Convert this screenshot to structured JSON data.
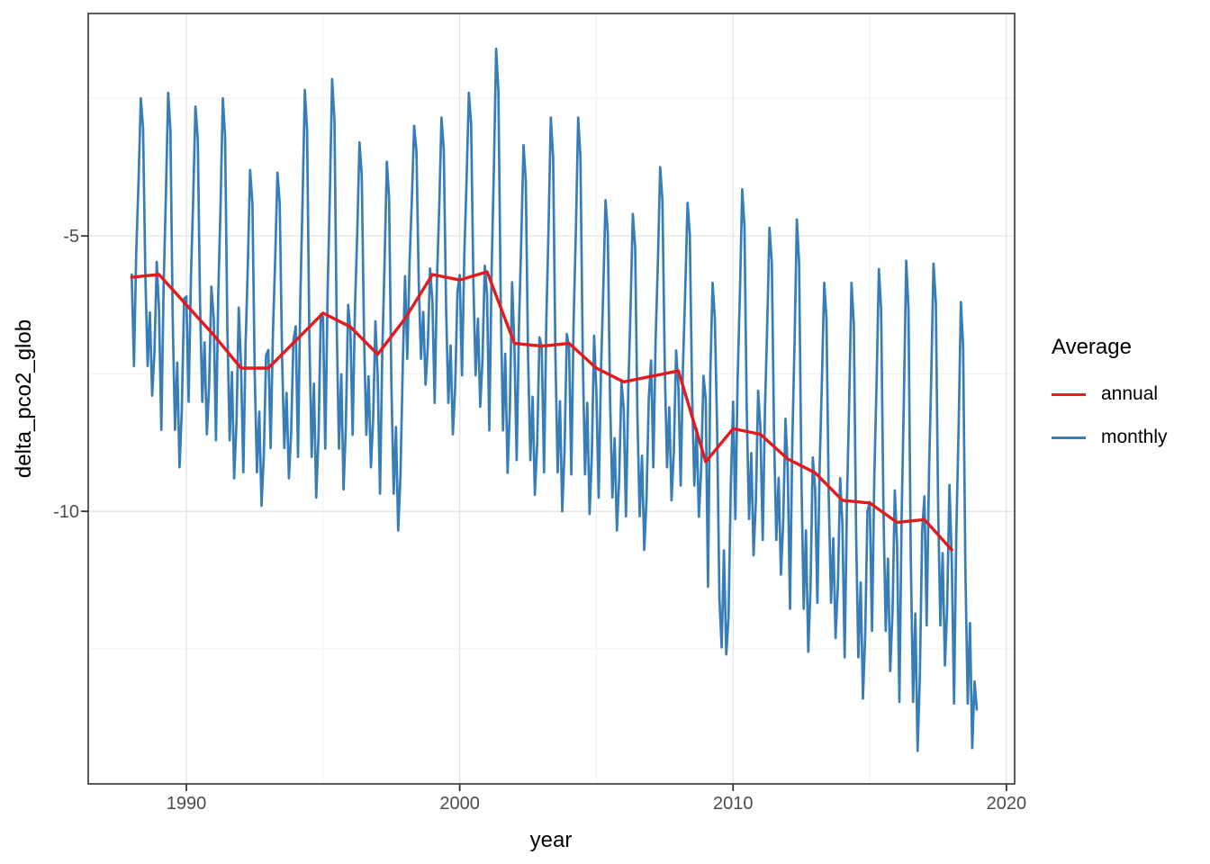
{
  "chart_data": {
    "type": "line",
    "title": "",
    "xlabel": "year",
    "ylabel": "delta_pco2_glob",
    "xlim": [
      1986.41,
      2020.3
    ],
    "ylim": [
      -14.95,
      -0.96
    ],
    "x_ticks_major": [
      1990,
      2000,
      2010,
      2020
    ],
    "x_ticks_minor": [
      1995,
      2005,
      2015
    ],
    "y_ticks_major": [
      -5,
      -10
    ],
    "y_ticks_minor": [
      -2.5,
      -7.5,
      -12.5
    ],
    "grid": true,
    "colors": {
      "annual": "#E41A1C",
      "monthly": "#377EB8",
      "grid_major": "#e5e5e5",
      "grid_minor": "#f2f2f2",
      "panel_border": "#333333",
      "tick": "#333333",
      "tick_label": "#4d4d4d"
    },
    "legend": {
      "title": "Average",
      "position": "right",
      "entries": [
        {
          "label": "annual",
          "color": "#E41A1C"
        },
        {
          "label": "monthly",
          "color": "#377EB8"
        }
      ]
    },
    "series": [
      {
        "name": "annual",
        "color": "#E41A1C",
        "x": [
          1988,
          1989,
          1990,
          1991,
          1992,
          1993,
          1994,
          1995,
          1996,
          1997,
          1998,
          1999,
          2000,
          2001,
          2002,
          2003,
          2004,
          2005,
          2006,
          2007,
          2008,
          2009,
          2010,
          2011,
          2012,
          2013,
          2014,
          2015,
          2016,
          2017,
          2018
        ],
        "values": [
          -5.75,
          -5.7,
          -6.25,
          -6.8,
          -7.4,
          -7.4,
          -6.9,
          -6.4,
          -6.65,
          -7.15,
          -6.5,
          -5.7,
          -5.8,
          -5.65,
          -6.95,
          -7.0,
          -6.95,
          -7.4,
          -7.65,
          -7.55,
          -7.45,
          -9.1,
          -8.5,
          -8.6,
          -9.05,
          -9.3,
          -9.8,
          -9.85,
          -10.2,
          -10.15,
          -10.7
        ]
      },
      {
        "name": "monthly",
        "color": "#377EB8",
        "start_year": 1988,
        "values_by_year": [
          [
            -5.7,
            -7.36,
            -5.31,
            -4.01,
            -2.5,
            -3.04,
            -5.74,
            -7.36,
            -6.39,
            -7.9,
            -7.09,
            -5.47
          ],
          [
            -6.34,
            -8.52,
            -5.94,
            -4.3,
            -2.4,
            -3.08,
            -6.48,
            -8.52,
            -7.3,
            -9.2,
            -8.18,
            -6.14
          ],
          [
            -6.1,
            -8.01,
            -5.74,
            -4.32,
            -2.65,
            -3.25,
            -6.22,
            -8.01,
            -6.93,
            -8.6,
            -7.71,
            -5.92
          ],
          [
            -6.5,
            -8.71,
            -6.09,
            -4.43,
            -2.5,
            -3.19,
            -6.64,
            -8.71,
            -7.47,
            -9.4,
            -8.37,
            -6.3
          ],
          [
            -7.34,
            -9.29,
            -6.97,
            -5.51,
            -3.8,
            -4.41,
            -7.46,
            -9.29,
            -8.19,
            -9.9,
            -8.99,
            -7.16
          ],
          [
            -7.07,
            -8.85,
            -6.74,
            -5.4,
            -3.85,
            -4.41,
            -7.18,
            -8.85,
            -7.85,
            -9.4,
            -8.57,
            -6.9
          ],
          [
            -6.64,
            -9.01,
            -6.2,
            -4.42,
            -2.35,
            -3.09,
            -6.79,
            -9.01,
            -7.68,
            -9.75,
            -8.64,
            -6.42
          ],
          [
            -6.47,
            -8.86,
            -6.02,
            -4.24,
            -2.15,
            -2.9,
            -6.62,
            -8.86,
            -7.51,
            -9.6,
            -8.48,
            -6.25
          ],
          [
            -6.72,
            -8.61,
            -6.37,
            -4.95,
            -3.3,
            -3.89,
            -6.84,
            -8.61,
            -7.55,
            -9.2,
            -8.32,
            -6.55
          ],
          [
            -7.54,
            -9.68,
            -7.13,
            -5.53,
            -3.65,
            -4.32,
            -7.67,
            -9.68,
            -8.47,
            -10.35,
            -9.35,
            -7.34
          ],
          [
            -5.73,
            -7.23,
            -5.44,
            -4.32,
            -3.0,
            -3.47,
            -5.82,
            -7.23,
            -6.38,
            -7.7,
            -7.0,
            -5.59
          ],
          [
            -6.19,
            -8.03,
            -5.84,
            -4.46,
            -2.85,
            -3.43,
            -6.3,
            -8.03,
            -6.99,
            -8.6,
            -7.74,
            -6.01
          ],
          [
            -5.71,
            -7.53,
            -5.36,
            -4.0,
            -2.4,
            -2.97,
            -5.82,
            -7.53,
            -6.5,
            -8.1,
            -7.25,
            -5.54
          ],
          [
            -6.07,
            -8.53,
            -5.6,
            -3.76,
            -1.6,
            -2.37,
            -6.22,
            -8.53,
            -7.14,
            -9.3,
            -8.15,
            -5.84
          ],
          [
            -7.03,
            -9.07,
            -6.65,
            -5.13,
            -3.35,
            -3.99,
            -7.16,
            -9.07,
            -7.92,
            -9.7,
            -8.75,
            -6.84
          ],
          [
            -7.0,
            -9.29,
            -6.57,
            -4.85,
            -2.85,
            -3.57,
            -7.14,
            -9.29,
            -8.0,
            -10.0,
            -8.93,
            -6.78
          ],
          [
            -7.03,
            -9.33,
            -6.59,
            -4.87,
            -2.85,
            -3.57,
            -7.17,
            -9.33,
            -8.03,
            -10.05,
            -8.97,
            -6.81
          ],
          [
            -7.83,
            -9.75,
            -7.47,
            -6.03,
            -4.35,
            -4.95,
            -7.95,
            -9.75,
            -8.67,
            -10.35,
            -9.45,
            -7.65
          ],
          [
            -8.14,
            -10.09,
            -7.77,
            -6.31,
            -4.6,
            -5.21,
            -8.26,
            -10.09,
            -8.99,
            -10.7,
            -9.79,
            -7.96
          ],
          [
            -7.26,
            -9.2,
            -6.9,
            -5.44,
            -3.75,
            -4.36,
            -7.38,
            -9.2,
            -8.11,
            -9.8,
            -8.89,
            -7.08
          ],
          [
            -7.71,
            -9.53,
            -7.36,
            -6.0,
            -4.4,
            -4.97,
            -7.82,
            -9.53,
            -8.5,
            -10.1,
            -9.25,
            -7.54
          ],
          [
            -7.96,
            -11.37,
            -7.5,
            -5.85,
            -6.5,
            -8.55,
            -11.59,
            -12.47,
            -10.71,
            -12.6,
            -11.93,
            -9.56
          ],
          [
            -8.01,
            -10.14,
            -7.61,
            -6.01,
            -4.15,
            -4.82,
            -8.14,
            -10.14,
            -8.94,
            -10.8,
            -9.8,
            -7.81
          ],
          [
            -8.5,
            -10.52,
            -8.13,
            -6.61,
            -4.85,
            -5.48,
            -8.63,
            -10.52,
            -9.39,
            -11.15,
            -10.21,
            -8.32
          ],
          [
            -9.25,
            -11.77,
            -8.78,
            -6.9,
            -4.7,
            -5.49,
            -9.41,
            -11.77,
            -10.35,
            -12.55,
            -11.37,
            -9.02
          ],
          [
            -9.59,
            -11.66,
            -9.2,
            -7.66,
            -5.85,
            -6.5,
            -9.72,
            -11.66,
            -10.49,
            -12.3,
            -11.33,
            -9.4
          ],
          [
            -10.23,
            -12.65,
            -9.78,
            -7.96,
            -5.85,
            -6.61,
            -10.38,
            -12.65,
            -11.29,
            -13.4,
            -12.27,
            -10.0
          ],
          [
            -9.83,
            -12.17,
            -9.4,
            -7.64,
            -5.6,
            -6.33,
            -9.98,
            -12.17,
            -10.86,
            -12.9,
            -11.81,
            -9.62
          ],
          [
            -10.61,
            -13.46,
            -10.08,
            -7.94,
            -5.45,
            -6.34,
            -10.79,
            -13.46,
            -11.86,
            -14.35,
            -13.02,
            -10.35
          ],
          [
            -9.73,
            -12.07,
            -9.3,
            -7.54,
            -5.5,
            -6.23,
            -9.88,
            -12.07,
            -10.76,
            -12.8,
            -11.71,
            -9.52
          ],
          [
            -10.9,
            -13.49,
            -10.41,
            -8.47,
            -6.2,
            -7.01,
            -11.06,
            -13.49,
            -12.03,
            -14.3,
            -13.09,
            -13.6
          ]
        ]
      }
    ]
  }
}
